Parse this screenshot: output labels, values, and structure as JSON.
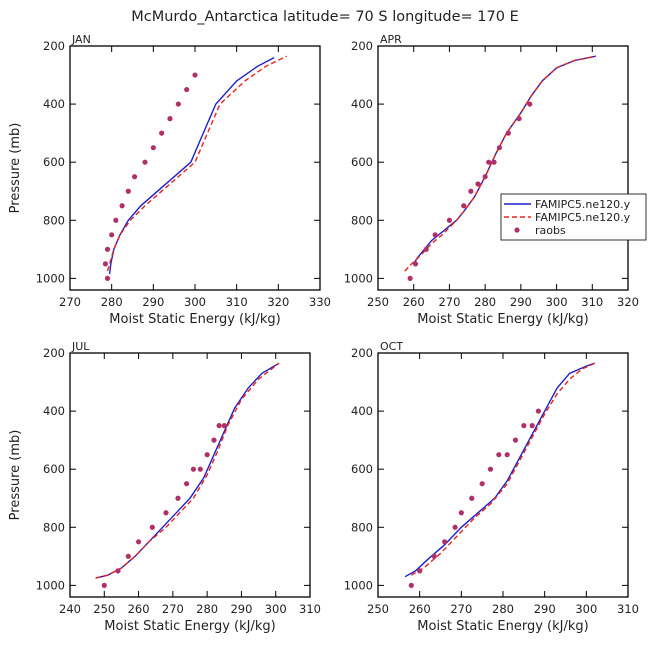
{
  "figure": {
    "title": "McMurdo_Antarctica  latitude= 70 S longitude= 170 E"
  },
  "legend": {
    "entries": [
      "FAMIPC5.ne120.y",
      "FAMIPC5.ne120.y",
      "raobs"
    ]
  },
  "colors": {
    "model1": "#1f1fcc",
    "model2": "#e8231b",
    "obs": "#b0306a",
    "axis": "#000000"
  },
  "chart_data": [
    {
      "type": "line",
      "panel": "JAN",
      "xlabel": "Moist Static Energy (kJ/kg)",
      "ylabel": "Pressure (mb)",
      "xlim": [
        270,
        330
      ],
      "ylim": [
        200,
        1040
      ],
      "xticks": [
        270,
        280,
        290,
        300,
        310,
        320,
        330
      ],
      "yticks": [
        200,
        400,
        600,
        800,
        1000
      ],
      "series": [
        {
          "name": "FAMIPC5.ne120.y",
          "style": "solid",
          "x": [
            279.5,
            279.8,
            280.5,
            282,
            284,
            287,
            291,
            295,
            299,
            302,
            305,
            310,
            315,
            319
          ],
          "y": [
            985,
            950,
            900,
            850,
            800,
            750,
            700,
            650,
            600,
            500,
            400,
            320,
            270,
            240
          ]
        },
        {
          "name": "FAMIPC5.ne120.y",
          "style": "dashed",
          "x": [
            279,
            279.5,
            280.5,
            282,
            284.5,
            288,
            292,
            296,
            300,
            303,
            306,
            312,
            317,
            322
          ],
          "y": [
            975,
            950,
            900,
            850,
            800,
            750,
            700,
            650,
            600,
            500,
            400,
            320,
            270,
            235
          ]
        },
        {
          "name": "raobs",
          "style": "markers",
          "x": [
            279,
            278.5,
            279,
            280,
            281,
            282.5,
            284,
            285.5,
            288,
            290,
            292,
            294,
            296,
            298,
            300
          ],
          "y": [
            1000,
            950,
            900,
            850,
            800,
            750,
            700,
            650,
            600,
            550,
            500,
            450,
            400,
            350,
            300
          ]
        }
      ]
    },
    {
      "type": "line",
      "panel": "APR",
      "xlabel": "Moist Static Energy (kJ/kg)",
      "ylabel": "",
      "xlim": [
        250,
        320
      ],
      "ylim": [
        200,
        1040
      ],
      "xticks": [
        250,
        260,
        270,
        280,
        290,
        300,
        310,
        320
      ],
      "yticks": [
        200,
        400,
        600,
        800,
        1000
      ],
      "series": [
        {
          "name": "FAMIPC5.ne120.y",
          "style": "solid",
          "x": [
            260,
            261,
            263,
            265,
            268,
            270,
            272,
            274,
            277,
            280,
            283,
            286,
            290,
            293,
            296,
            300,
            305,
            311
          ],
          "y": [
            950,
            930,
            900,
            870,
            840,
            820,
            800,
            770,
            720,
            650,
            570,
            500,
            430,
            370,
            320,
            275,
            250,
            235
          ]
        },
        {
          "name": "FAMIPC5.ne120.y",
          "style": "dashed",
          "x": [
            257.5,
            259,
            262,
            265,
            268,
            270,
            272,
            274,
            277,
            280,
            283,
            286,
            290,
            293,
            296,
            300,
            305,
            311
          ],
          "y": [
            975,
            955,
            920,
            880,
            850,
            825,
            800,
            770,
            720,
            650,
            570,
            500,
            430,
            370,
            320,
            275,
            250,
            235
          ]
        },
        {
          "name": "raobs",
          "style": "markers",
          "x": [
            259,
            260.5,
            263.5,
            266,
            270,
            274,
            276,
            278,
            280,
            281,
            282.5,
            284,
            286.5,
            289.5,
            292.5
          ],
          "y": [
            1000,
            950,
            900,
            850,
            800,
            750,
            700,
            675,
            650,
            600,
            600,
            550,
            500,
            450,
            400
          ]
        }
      ]
    },
    {
      "type": "line",
      "panel": "JUL",
      "xlabel": "Moist Static Energy (kJ/kg)",
      "ylabel": "Pressure (mb)",
      "xlim": [
        240,
        310
      ],
      "ylim": [
        200,
        1040
      ],
      "xticks": [
        240,
        250,
        260,
        270,
        280,
        290,
        300,
        310
      ],
      "yticks": [
        200,
        400,
        600,
        800,
        1000
      ],
      "series": [
        {
          "name": "FAMIPC5.ne120.y",
          "style": "solid",
          "x": [
            247.5,
            251,
            255,
            259,
            263,
            267,
            271,
            275,
            279,
            282,
            285,
            288,
            292,
            296,
            301
          ],
          "y": [
            975,
            965,
            940,
            900,
            850,
            800,
            750,
            700,
            630,
            550,
            470,
            390,
            320,
            270,
            235
          ]
        },
        {
          "name": "FAMIPC5.ne120.y",
          "style": "dashed",
          "x": [
            247.5,
            251,
            255,
            259,
            263,
            268,
            272,
            276,
            280,
            283,
            286,
            290,
            295,
            301
          ],
          "y": [
            975,
            965,
            940,
            900,
            850,
            800,
            750,
            700,
            620,
            540,
            450,
            360,
            290,
            235
          ]
        },
        {
          "name": "raobs",
          "style": "markers",
          "x": [
            250,
            254,
            257,
            260,
            264,
            268,
            271.5,
            274,
            276,
            278,
            280,
            282,
            283.5,
            285
          ],
          "y": [
            1000,
            950,
            900,
            850,
            800,
            750,
            700,
            650,
            600,
            600,
            550,
            500,
            450,
            450
          ]
        }
      ]
    },
    {
      "type": "line",
      "panel": "OCT",
      "xlabel": "Moist Static Energy (kJ/kg)",
      "ylabel": "",
      "xlim": [
        250,
        310
      ],
      "ylim": [
        200,
        1040
      ],
      "xticks": [
        250,
        260,
        270,
        280,
        290,
        300,
        310
      ],
      "yticks": [
        200,
        400,
        600,
        800,
        1000
      ],
      "series": [
        {
          "name": "FAMIPC5.ne120.y",
          "style": "solid",
          "x": [
            256.5,
            259,
            262,
            266,
            270,
            274,
            278,
            281,
            284,
            287,
            290,
            293,
            296,
            300,
            302
          ],
          "y": [
            970,
            950,
            910,
            860,
            800,
            750,
            700,
            640,
            560,
            480,
            400,
            320,
            270,
            245,
            235
          ]
        },
        {
          "name": "FAMIPC5.ne120.y",
          "style": "dashed",
          "x": [
            258,
            261,
            265,
            269,
            273,
            277,
            281,
            284,
            287,
            290,
            293,
            296,
            299,
            302
          ],
          "y": [
            965,
            940,
            890,
            830,
            770,
            720,
            650,
            570,
            490,
            410,
            340,
            290,
            255,
            235
          ]
        },
        {
          "name": "raobs",
          "style": "markers",
          "x": [
            258,
            260,
            263.5,
            266,
            268.5,
            270,
            272.5,
            275,
            277,
            279,
            281,
            283,
            285,
            287,
            288.5
          ],
          "y": [
            1000,
            950,
            900,
            850,
            800,
            750,
            700,
            650,
            600,
            550,
            550,
            500,
            450,
            450,
            400
          ]
        }
      ]
    }
  ]
}
